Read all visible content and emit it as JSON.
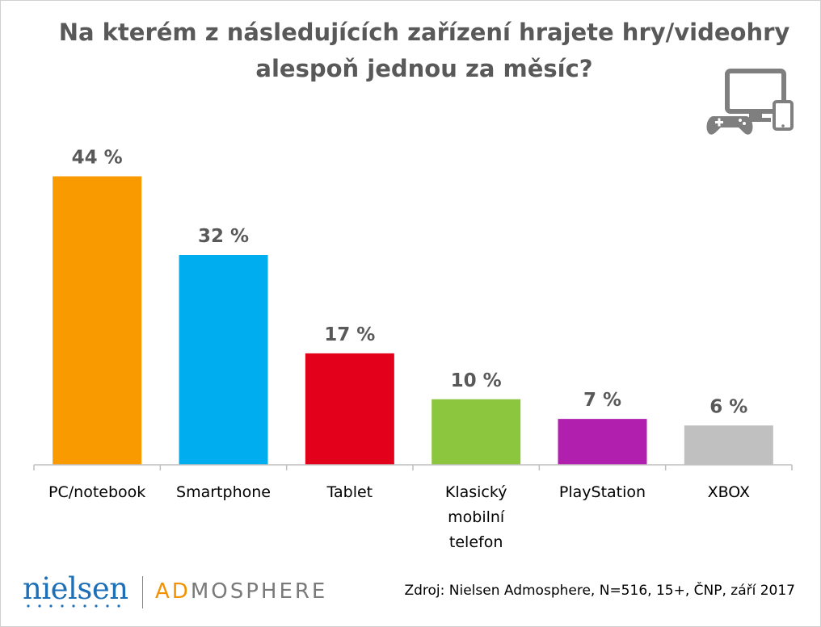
{
  "title": {
    "line1": "Na kterém z následujících zařízení hrajete hry/videohry",
    "line2": "alespoň jednou za měsíc?"
  },
  "icon": "pc-phone-gamepad-icon",
  "chart_data": {
    "type": "bar",
    "categories": [
      "PC/notebook",
      "Smartphone",
      "Tablet",
      "Klasický mobilní telefon",
      "PlayStation",
      "XBOX"
    ],
    "category_lines": [
      [
        "PC/notebook"
      ],
      [
        "Smartphone"
      ],
      [
        "Tablet"
      ],
      [
        "Klasický",
        "mobilní",
        "telefon"
      ],
      [
        "PlayStation"
      ],
      [
        "XBOX"
      ]
    ],
    "values": [
      44,
      32,
      17,
      10,
      7,
      6
    ],
    "value_labels": [
      "44 %",
      "32 %",
      "17 %",
      "10 %",
      "7 %",
      "6 %"
    ],
    "colors": [
      "#f89a00",
      "#00adee",
      "#e3001b",
      "#8cc63f",
      "#b01fae",
      "#c0c0c0"
    ],
    "unit": "%",
    "ylim": [
      0,
      48
    ],
    "grid": false,
    "title": "Na kterém z následujících zařízení hrajete hry/videohry alespoň jednou za měsíc?"
  },
  "footer": {
    "nielsen_logo": "nielsen",
    "admosphere_ad": "AD",
    "admosphere_rest": "MOSPHERE",
    "source": "Zdroj: Nielsen Admosphere, N=516, 15+, ČNP, září 2017"
  },
  "colors": {
    "title": "#595959",
    "nielsen": "#1d6fb8",
    "admosphere_accent": "#f29200",
    "icon": "#7f7f7f"
  }
}
